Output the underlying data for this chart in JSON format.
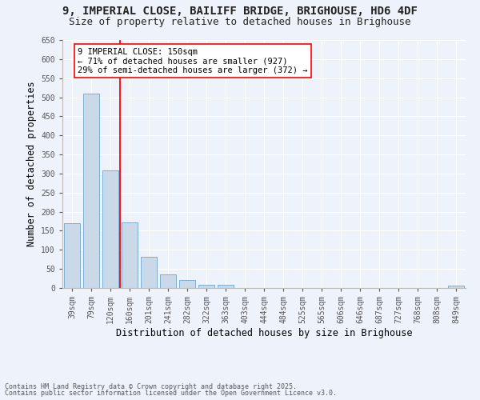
{
  "title_line1": "9, IMPERIAL CLOSE, BAILIFF BRIDGE, BRIGHOUSE, HD6 4DF",
  "title_line2": "Size of property relative to detached houses in Brighouse",
  "xlabel": "Distribution of detached houses by size in Brighouse",
  "ylabel": "Number of detached properties",
  "categories": [
    "39sqm",
    "79sqm",
    "120sqm",
    "160sqm",
    "201sqm",
    "241sqm",
    "282sqm",
    "322sqm",
    "363sqm",
    "403sqm",
    "444sqm",
    "484sqm",
    "525sqm",
    "565sqm",
    "606sqm",
    "646sqm",
    "687sqm",
    "727sqm",
    "768sqm",
    "808sqm",
    "849sqm"
  ],
  "values": [
    170,
    510,
    308,
    172,
    82,
    35,
    22,
    8,
    8,
    0,
    0,
    0,
    0,
    0,
    0,
    0,
    0,
    0,
    0,
    0,
    7
  ],
  "bar_color": "#c9d9e8",
  "bar_edge_color": "#7bafd4",
  "vline_color": "red",
  "annotation_text": "9 IMPERIAL CLOSE: 150sqm\n← 71% of detached houses are smaller (927)\n29% of semi-detached houses are larger (372) →",
  "annotation_box_color": "white",
  "annotation_box_edge_color": "red",
  "ylim": [
    0,
    650
  ],
  "yticks": [
    0,
    50,
    100,
    150,
    200,
    250,
    300,
    350,
    400,
    450,
    500,
    550,
    600,
    650
  ],
  "footnote1": "Contains HM Land Registry data © Crown copyright and database right 2025.",
  "footnote2": "Contains public sector information licensed under the Open Government Licence v3.0.",
  "background_color": "#eef2fb",
  "grid_color": "white",
  "title_fontsize": 10,
  "subtitle_fontsize": 9,
  "axis_label_fontsize": 8.5,
  "tick_fontsize": 7,
  "annotation_fontsize": 7.5,
  "footnote_fontsize": 6
}
